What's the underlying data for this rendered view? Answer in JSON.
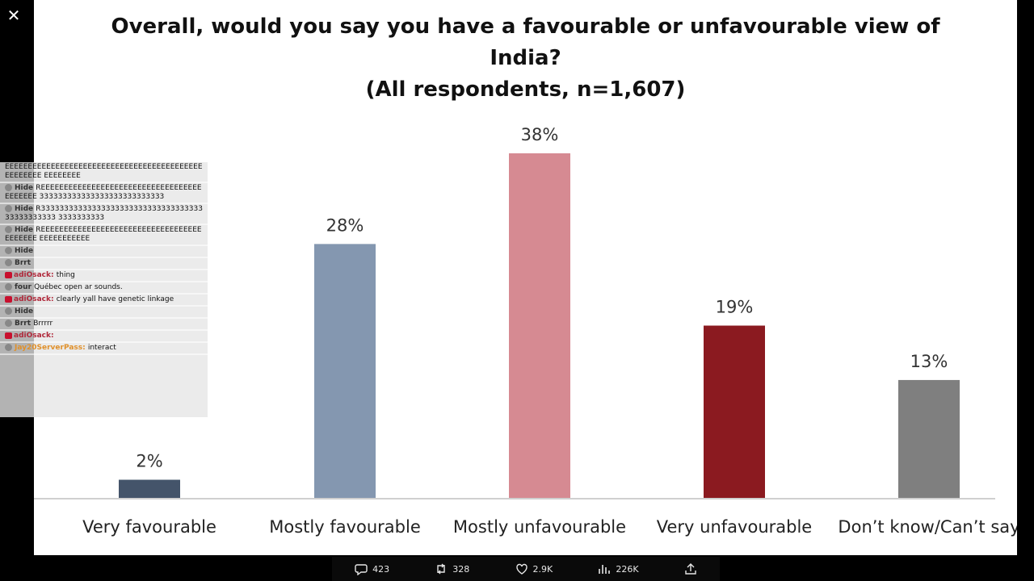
{
  "window": {
    "close_label": "✕"
  },
  "chart_data": {
    "type": "bar",
    "title_lines": [
      "Overall, would you say you have a favourable or unfavourable view of",
      "India?",
      "(All respondents,  n=1,607)"
    ],
    "categories": [
      "Very favourable",
      "Mostly favourable",
      "Mostly unfavourable",
      "Very unfavourable",
      "Don’t know/Can’t say"
    ],
    "values": [
      2,
      28,
      38,
      19,
      13
    ],
    "value_labels": [
      "2%",
      "28%",
      "38%",
      "19%",
      "13%"
    ],
    "colors": [
      "#44546a",
      "#8497b0",
      "#d68a92",
      "#8b1a20",
      "#7f7f7f"
    ],
    "ylim": [
      0,
      38
    ],
    "grid": false,
    "legend": "none"
  },
  "chat": {
    "messages": [
      {
        "user": "",
        "text": "EEEEEEEEEEEEEEEEEEEEEEEEEEEEEEEEEEEEEEEEEEEEEEEEEEE EEEEEEEE"
      },
      {
        "user": "Hide",
        "text": "REEEEEEEEEEEEEEEEEEEEEEEEEEEEEEEEEEEEEEEEEE 333333333333333333333333333"
      },
      {
        "user": "Hide",
        "text": "R3333333333333333333333333333333333333333333333 3333333333"
      },
      {
        "user": "Hide",
        "text": "REEEEEEEEEEEEEEEEEEEEEEEEEEEEEEEEEEEEEEEEEE EEEEEEEEEEE"
      },
      {
        "user": "Hide",
        "text": ""
      },
      {
        "user": "Brrt",
        "text": ""
      },
      {
        "user": "adiOsack:",
        "text": "thing"
      },
      {
        "user": "four",
        "text": "Québec open ar sounds."
      },
      {
        "user": "adiOsack:",
        "text": "clearly yall have genetic linkage"
      },
      {
        "user": "Hide",
        "text": ""
      },
      {
        "user": "Brrt",
        "text": "Brrrrr"
      },
      {
        "user": "adiOsack:",
        "text": ""
      },
      {
        "user": "Jay20ServerPass:",
        "text": "interact"
      }
    ]
  },
  "actions": {
    "replies": "423",
    "reposts": "328",
    "likes": "2.9K",
    "views": "226K"
  }
}
